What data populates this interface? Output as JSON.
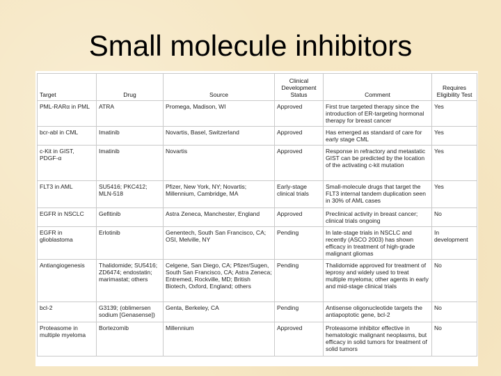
{
  "slide": {
    "title": "Small molecule inhibitors"
  },
  "table": {
    "headers": [
      "Target",
      "Drug",
      "Source",
      "Clinical Development Status",
      "Comment",
      "Requires Eligibility Test"
    ],
    "rows": [
      [
        "PML-RARα in PML",
        "ATRA",
        "Promega, Madison, WI",
        "Approved",
        "First true targeted therapy since the introduction of ER-targeting hormonal therapy for breast cancer",
        "Yes"
      ],
      [
        "bcr-abl in CML",
        "Imatinib",
        "Novartis, Basel, Switzerland",
        "Approved",
        "Has emerged as standard of care for early stage CML",
        "Yes"
      ],
      [
        "c-Kit in GIST, PDGF-α",
        "Imatinib",
        "Novartis",
        "Approved",
        "Response in refractory and metastatic GIST can be predicted by the location of the activating c-kit mutation",
        "Yes"
      ],
      [
        "FLT3 in AML",
        "SU5416; PKC412; MLN-518",
        "Pfizer, New York, NY; Novartis; Millennium, Cambridge, MA",
        "Early-stage clinical trials",
        "Small-molecule drugs that target the FLT3 internal tandem duplication seen in 30% of AML cases",
        "Yes"
      ],
      [
        "EGFR in NSCLC",
        "Gefitinib",
        "Astra Zeneca, Manchester, England",
        "Approved",
        "Preclinical activity in breast cancer; clinical trials ongoing",
        "No"
      ],
      [
        "EGFR in glioblastoma",
        "Erlotinib",
        "Genentech, South San Francisco, CA; OSI, Melville, NY",
        "Pending",
        "In late-stage trials in NSCLC and recently (ASCO 2003) has shown efficacy in treatment of high-grade malignant gliomas",
        "In development"
      ],
      [
        "Antiangiogenesis",
        "Thalidomide; SU5416; ZD6474; endostatin; marimastat; others",
        "Celgene, San Diego, CA; Pfizer/Sugen, South San Francisco, CA; Astra Zeneca; Entremed, Rockville, MD; British Biotech, Oxford, England; others",
        "Pending",
        "Thalidomide approved for treatment of leprosy and widely used to treat multiple myeloma; other agents in early and mid-stage clinical trials",
        "No"
      ],
      [
        "bcl-2",
        "G3139; (oblimersen sodium [Genasense])",
        "Genta, Berkeley, CA",
        "Pending",
        "Antisense oligonucleotide targets the antiapoptotic gene, bcl-2",
        "No"
      ],
      [
        "Proteasome in multiple myeloma",
        "Bortezomib",
        "Millennium",
        "Approved",
        "Proteasome inhibitor effective in hematologic malignant neoplasms, but efficacy in solid tumors for treatment of solid tumors",
        "No"
      ]
    ]
  }
}
